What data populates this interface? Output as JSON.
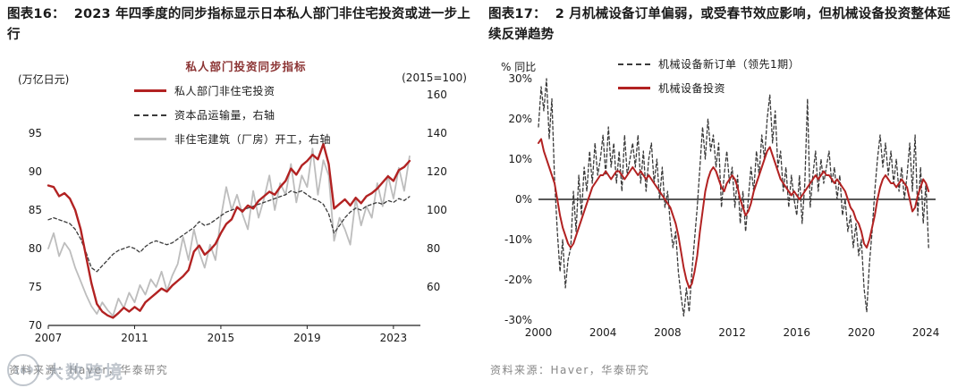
{
  "colors": {
    "series_red": "#b22222",
    "series_dark": "#3a3a3a",
    "series_gray": "#bdbdbd",
    "legend_title": "#8b3333",
    "source_text": "#878787"
  },
  "watermark": {
    "badge": "169",
    "text": "大数跨境"
  },
  "left_panel": {
    "title_prefix": "图表16：",
    "title": "2023 年四季度的同步指标显示日本私人部门非住宅投资或进一步上行",
    "source": "资料来源：Haver，华泰研究"
  },
  "right_panel": {
    "title_prefix": "图表17：",
    "title": "2 月机械设备订单偏弱，或受春节效应影响，但机械设备投资整体延续反弹趋势",
    "source": "资料来源：Haver，华泰研究"
  },
  "chart_data": [
    {
      "type": "line",
      "legend_title": "私人部门投资同步指标",
      "left_axis_unit": "(万亿日元)",
      "right_axis_unit": "(2015=100)",
      "x_range": [
        2007,
        2024.25
      ],
      "x_ticks": [
        2007,
        2011,
        2015,
        2019,
        2023
      ],
      "y_left": {
        "min": 70,
        "max": 100,
        "ticks": [
          70,
          75,
          80,
          85,
          90,
          95
        ]
      },
      "y_right": {
        "min": 40,
        "max": 160,
        "ticks": [
          60,
          80,
          100,
          120,
          140,
          160
        ]
      },
      "grid": false,
      "legend_position": "top-center",
      "series": [
        {
          "key": "private-nonresidential-investment-line",
          "name": "私人部门非住宅投资",
          "axis": "left",
          "style": "solid",
          "color": "#b22222",
          "width": 2.4,
          "z": 3,
          "x_start": 2007,
          "x_step": 0.25,
          "values": [
            88.2,
            88.0,
            86.8,
            87.2,
            86.5,
            85.0,
            82.5,
            79.0,
            75.5,
            72.8,
            71.8,
            71.3,
            71.0,
            71.6,
            72.3,
            71.8,
            72.4,
            71.9,
            73.0,
            73.6,
            74.2,
            74.8,
            74.4,
            75.2,
            75.8,
            76.4,
            77.2,
            79.6,
            80.4,
            79.2,
            79.8,
            80.6,
            82.0,
            83.2,
            83.8,
            85.4,
            84.8,
            85.6,
            85.2,
            86.2,
            86.8,
            87.4,
            87.0,
            88.0,
            88.8,
            90.4,
            89.6,
            90.8,
            91.4,
            92.2,
            91.6,
            93.6,
            91.0,
            85.2,
            85.8,
            86.4,
            85.6,
            86.6,
            85.9,
            86.8,
            87.2,
            87.8,
            88.6,
            89.4,
            88.8,
            90.2,
            90.6,
            91.4
          ]
        },
        {
          "key": "capital-goods-shipments-line",
          "name": "资本品运输量，右轴",
          "axis": "right",
          "style": "dashed",
          "color": "#3a3a3a",
          "width": 1.3,
          "z": 2,
          "x_start": 2007,
          "x_step": 0.25,
          "values": [
            95,
            96,
            95,
            94,
            93,
            90,
            85,
            78,
            70,
            68,
            71,
            74,
            77,
            79,
            80,
            81,
            80,
            78,
            81,
            83,
            84,
            83,
            82,
            83,
            85,
            87,
            89,
            91,
            94,
            92,
            93,
            95,
            97,
            99,
            100,
            101,
            100,
            101,
            102,
            103,
            104,
            105,
            106,
            107,
            108,
            110,
            109,
            110,
            108,
            106,
            105,
            103,
            98,
            88,
            92,
            96,
            99,
            101,
            100,
            102,
            103,
            104,
            103,
            105,
            104,
            106,
            105,
            107
          ]
        },
        {
          "key": "nonresidential-building-starts-line",
          "name": "非住宅建筑（厂房）开工，右轴",
          "axis": "right",
          "style": "solid",
          "color": "#bdbdbd",
          "width": 1.8,
          "z": 1,
          "x_start": 2007,
          "x_step": 0.25,
          "values": [
            80,
            88,
            76,
            83,
            79,
            70,
            63,
            56,
            50,
            46,
            52,
            48,
            45,
            54,
            49,
            57,
            52,
            61,
            56,
            64,
            60,
            68,
            58,
            66,
            72,
            86,
            74,
            90,
            78,
            70,
            82,
            74,
            96,
            112,
            100,
            108,
            98,
            90,
            110,
            96,
            106,
            118,
            100,
            114,
            108,
            124,
            104,
            118,
            112,
            132,
            108,
            126,
            118,
            84,
            96,
            90,
            82,
            106,
            92,
            102,
            96,
            114,
            102,
            118,
            106,
            122,
            110,
            128
          ]
        }
      ]
    },
    {
      "type": "line",
      "ylabel": "% 同比",
      "x_range": [
        2000,
        2024.6
      ],
      "x_ticks": [
        2000,
        2004,
        2008,
        2012,
        2016,
        2020,
        2024
      ],
      "y": {
        "min": -30,
        "max": 30,
        "ticks": [
          -30,
          -20,
          -10,
          0,
          10,
          20,
          30
        ],
        "format": "percent"
      },
      "grid": false,
      "legend_position": "top-center",
      "series": [
        {
          "key": "machinery-new-orders-line",
          "name": "机械设备新订单（领先1期）",
          "axis": "left",
          "style": "dashed",
          "color": "#3a3a3a",
          "width": 1.3,
          "z": 1,
          "x_start": 2000,
          "x_step": 0.1666667,
          "values": [
            18,
            28,
            22,
            30,
            15,
            25,
            5,
            -8,
            -18,
            -10,
            -22,
            -15,
            -12,
            2,
            -8,
            6,
            -4,
            8,
            2,
            12,
            4,
            14,
            6,
            10,
            16,
            6,
            18,
            8,
            14,
            4,
            12,
            2,
            16,
            6,
            10,
            14,
            8,
            16,
            4,
            12,
            2,
            10,
            14,
            4,
            10,
            0,
            8,
            -2,
            2,
            -6,
            -12,
            -8,
            -18,
            -24,
            -29,
            -22,
            -28,
            -18,
            -10,
            -2,
            8,
            18,
            10,
            20,
            12,
            16,
            8,
            14,
            -2,
            6,
            12,
            4,
            8,
            -2,
            6,
            -6,
            2,
            -8,
            0,
            8,
            2,
            12,
            6,
            16,
            10,
            20,
            26,
            14,
            22,
            8,
            12,
            2,
            8,
            -2,
            6,
            0,
            -4,
            6,
            -6,
            4,
            25,
            -2,
            6,
            12,
            2,
            10,
            4,
            8,
            12,
            4,
            8,
            0,
            6,
            -4,
            0,
            -8,
            -4,
            -12,
            -6,
            -14,
            -10,
            -22,
            -28,
            -16,
            -8,
            2,
            10,
            16,
            8,
            14,
            6,
            12,
            4,
            10,
            2,
            8,
            0,
            6,
            14,
            2,
            16,
            -4,
            8,
            -6,
            4,
            -12
          ]
        },
        {
          "key": "machinery-investment-line",
          "name": "机械设备投资",
          "axis": "left",
          "style": "solid",
          "color": "#b22222",
          "width": 2.0,
          "z": 2,
          "x_start": 2000,
          "x_step": 0.1666667,
          "values": [
            14,
            15,
            12,
            10,
            8,
            6,
            4,
            0,
            -4,
            -7,
            -9,
            -11,
            -12,
            -11,
            -9,
            -7,
            -5,
            -3,
            -1,
            1,
            3,
            4,
            5,
            6,
            6,
            7,
            6,
            5,
            6,
            7,
            7,
            6,
            5,
            6,
            7,
            8,
            7,
            6,
            7,
            6,
            5,
            6,
            5,
            4,
            3,
            2,
            1,
            0,
            -1,
            -2,
            -4,
            -6,
            -9,
            -13,
            -17,
            -20,
            -22,
            -21,
            -18,
            -14,
            -8,
            -3,
            2,
            5,
            7,
            8,
            7,
            5,
            3,
            2,
            4,
            5,
            6,
            5,
            3,
            0,
            -2,
            -4,
            -3,
            -1,
            2,
            4,
            6,
            8,
            10,
            12,
            13,
            11,
            9,
            7,
            5,
            4,
            3,
            2,
            1,
            2,
            1,
            0,
            1,
            2,
            3,
            4,
            5,
            6,
            5,
            6,
            7,
            6,
            6,
            5,
            4,
            5,
            4,
            3,
            2,
            0,
            -2,
            -3,
            -5,
            -6,
            -8,
            -11,
            -12,
            -10,
            -7,
            -4,
            0,
            3,
            5,
            6,
            5,
            4,
            4,
            3,
            4,
            5,
            4,
            3,
            0,
            -3,
            -2,
            1,
            3,
            5,
            4,
            2
          ]
        }
      ]
    }
  ]
}
